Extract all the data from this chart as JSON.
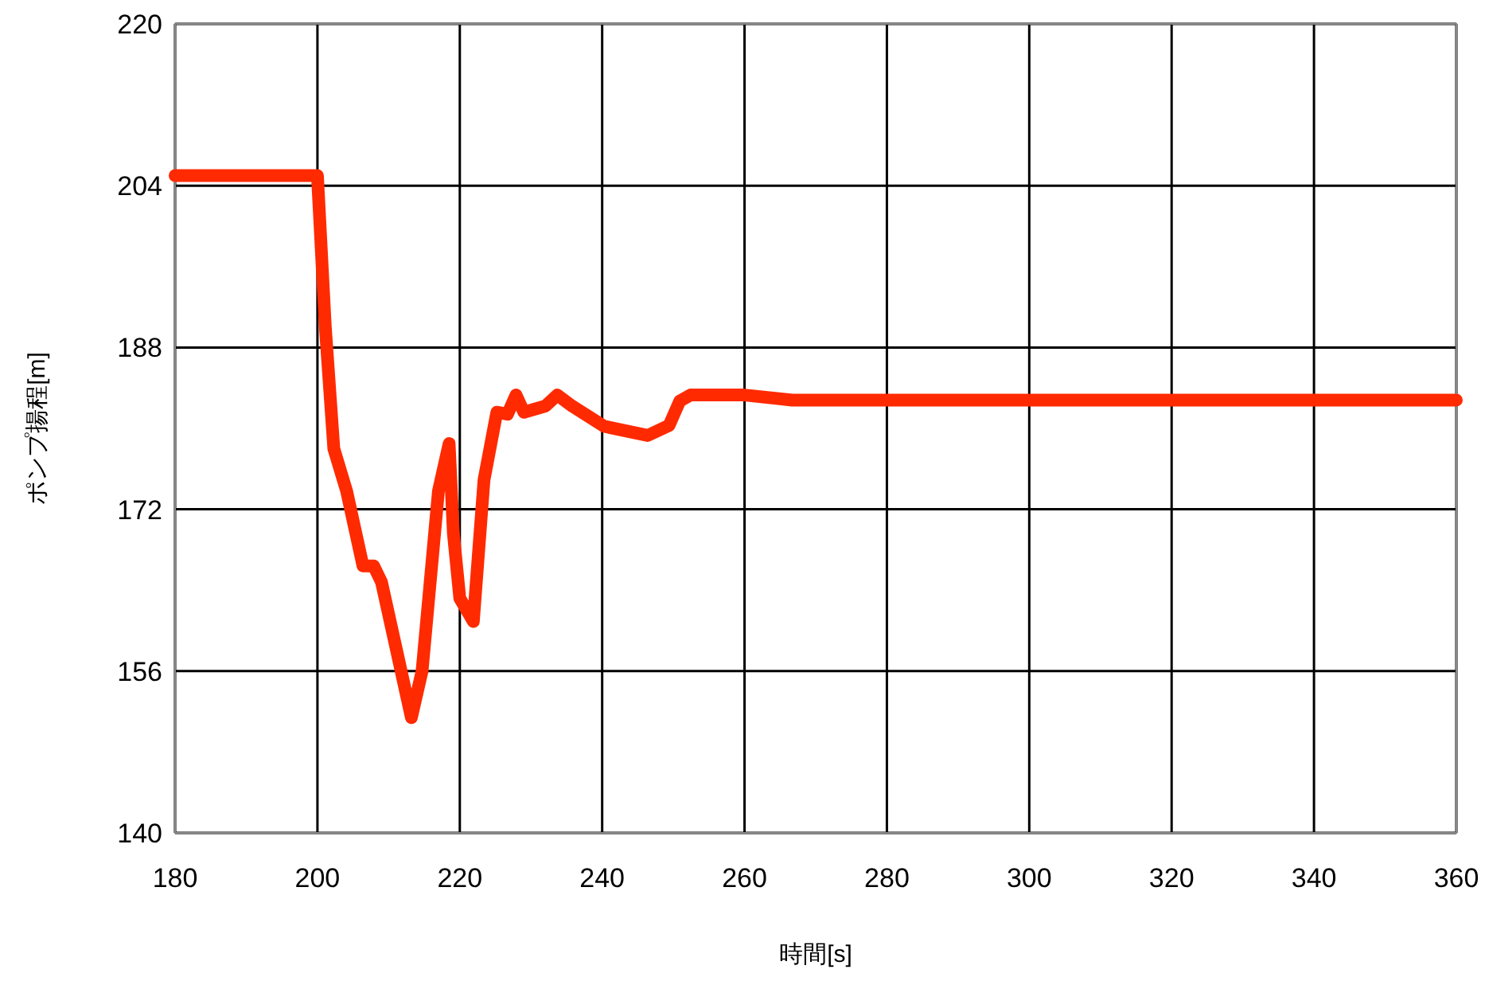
{
  "chart_data": {
    "type": "line",
    "xlabel": "時間[s]",
    "ylabel": "ポンプ揚程[m]",
    "xlim": [
      180,
      360
    ],
    "xticks": [
      180,
      200,
      220,
      240,
      260,
      280,
      300,
      320,
      340,
      360
    ],
    "ylim": [
      140,
      220
    ],
    "yticks": [
      140,
      156,
      172,
      188,
      204,
      220
    ],
    "grid": true,
    "series": [
      {
        "color": "#ff2a00",
        "x": [
          180,
          200,
          201.1,
          202.3,
          204.1,
          206.4,
          207.9,
          209,
          213.2,
          214.7,
          217,
          218.5,
          219.1,
          220,
          221.9,
          223.4,
          225.2,
          226.7,
          227.9,
          229,
          232,
          233.7,
          235.8,
          240.3,
          246.4,
          249.4,
          250.9,
          252.4,
          260,
          266.7,
          360
        ],
        "values": [
          205,
          205,
          190.1,
          178,
          173.8,
          166.4,
          166.4,
          164.8,
          151.4,
          156,
          173.8,
          178.5,
          169.6,
          163.2,
          160.9,
          174.9,
          181.6,
          181.4,
          183.3,
          181.6,
          182.2,
          183.3,
          182.2,
          180.2,
          179.3,
          180.3,
          182.7,
          183.3,
          183.3,
          182.8,
          182.8
        ]
      }
    ]
  }
}
